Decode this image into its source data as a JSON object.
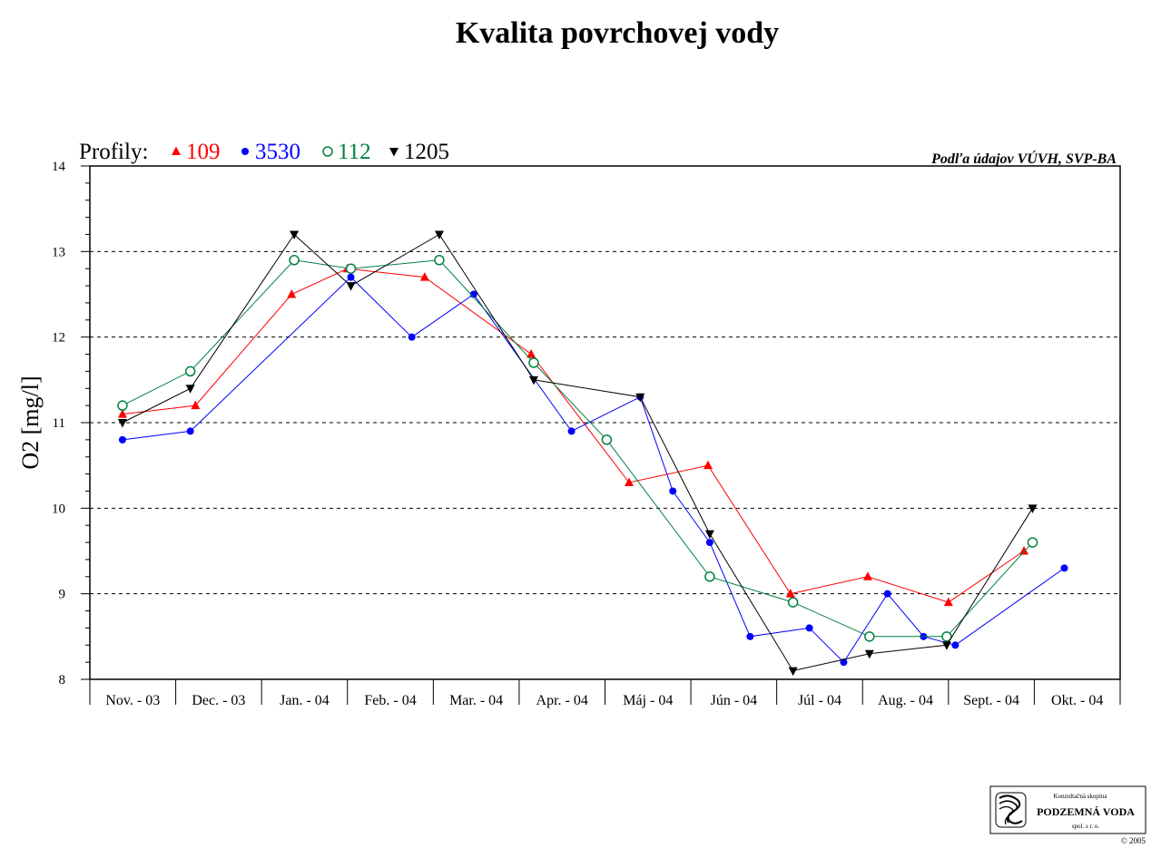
{
  "chart_data": {
    "type": "line",
    "title": "Kvalita povrchovej vody",
    "ylabel": "O2 [mg/l]",
    "xlabel": "",
    "ylim": [
      8,
      14
    ],
    "yticks": [
      "8",
      "9",
      "10",
      "11",
      "12",
      "13",
      "14"
    ],
    "grid": "horizontal dashed",
    "legend_prefix": "Profily:",
    "source": "Podľa údajov VÚVH, SVP-BA",
    "categories": [
      "Nov. - 03",
      "Dec. - 03",
      "Jan. - 04",
      "Feb. - 04",
      "Mar. - 04",
      "Apr. - 04",
      "Máj - 04",
      "Jún - 04",
      "Júl - 04",
      "Aug. - 04",
      "Sept. - 04",
      "Okt. - 04"
    ],
    "series": [
      {
        "name": "109",
        "color": "#ff0000",
        "marker": "triangle-up",
        "points": [
          {
            "x": 0.38,
            "y": 11.1
          },
          {
            "x": 1.23,
            "y": 11.2
          },
          {
            "x": 2.35,
            "y": 12.5
          },
          {
            "x": 3.0,
            "y": 12.8
          },
          {
            "x": 3.9,
            "y": 12.7
          },
          {
            "x": 5.14,
            "y": 11.8
          },
          {
            "x": 6.28,
            "y": 10.3
          },
          {
            "x": 7.2,
            "y": 10.5
          },
          {
            "x": 8.16,
            "y": 9.0
          },
          {
            "x": 9.06,
            "y": 9.2
          },
          {
            "x": 10.0,
            "y": 8.9
          },
          {
            "x": 10.88,
            "y": 9.5
          }
        ]
      },
      {
        "name": "3530",
        "color": "#0000ff",
        "marker": "circle-filled",
        "points": [
          {
            "x": 0.38,
            "y": 10.8
          },
          {
            "x": 1.17,
            "y": 10.9
          },
          {
            "x": 3.04,
            "y": 12.7
          },
          {
            "x": 3.75,
            "y": 12.0
          },
          {
            "x": 4.47,
            "y": 12.5
          },
          {
            "x": 5.61,
            "y": 10.9
          },
          {
            "x": 6.41,
            "y": 11.3
          },
          {
            "x": 6.79,
            "y": 10.2
          },
          {
            "x": 7.22,
            "y": 9.6
          },
          {
            "x": 7.69,
            "y": 8.5
          },
          {
            "x": 8.38,
            "y": 8.6
          },
          {
            "x": 8.78,
            "y": 8.2
          },
          {
            "x": 9.29,
            "y": 9.0
          },
          {
            "x": 9.71,
            "y": 8.5
          },
          {
            "x": 10.08,
            "y": 8.4
          },
          {
            "x": 11.35,
            "y": 9.3
          }
        ]
      },
      {
        "name": "112",
        "color": "#008040",
        "marker": "circle-open",
        "points": [
          {
            "x": 0.38,
            "y": 11.2
          },
          {
            "x": 1.17,
            "y": 11.6
          },
          {
            "x": 2.38,
            "y": 12.9
          },
          {
            "x": 3.04,
            "y": 12.8
          },
          {
            "x": 4.07,
            "y": 12.9
          },
          {
            "x": 5.17,
            "y": 11.7
          },
          {
            "x": 6.02,
            "y": 10.8
          },
          {
            "x": 7.22,
            "y": 9.2
          },
          {
            "x": 8.19,
            "y": 8.9
          },
          {
            "x": 9.08,
            "y": 8.5
          },
          {
            "x": 9.98,
            "y": 8.5
          },
          {
            "x": 10.98,
            "y": 9.6
          }
        ]
      },
      {
        "name": "1205",
        "color": "#000000",
        "marker": "triangle-down",
        "points": [
          {
            "x": 0.38,
            "y": 11.0
          },
          {
            "x": 1.17,
            "y": 11.4
          },
          {
            "x": 2.38,
            "y": 13.2
          },
          {
            "x": 3.04,
            "y": 12.6
          },
          {
            "x": 4.07,
            "y": 13.2
          },
          {
            "x": 5.17,
            "y": 11.5
          },
          {
            "x": 6.41,
            "y": 11.3
          },
          {
            "x": 7.22,
            "y": 9.7
          },
          {
            "x": 8.19,
            "y": 8.1
          },
          {
            "x": 9.08,
            "y": 8.3
          },
          {
            "x": 9.98,
            "y": 8.4
          },
          {
            "x": 10.98,
            "y": 10.0
          }
        ]
      }
    ]
  },
  "logo": {
    "line1": "Konzultačná skupina",
    "line2": "PODZEMNÁ VODA",
    "line3": "spol. s r. o.",
    "copyright": "© 2005"
  }
}
